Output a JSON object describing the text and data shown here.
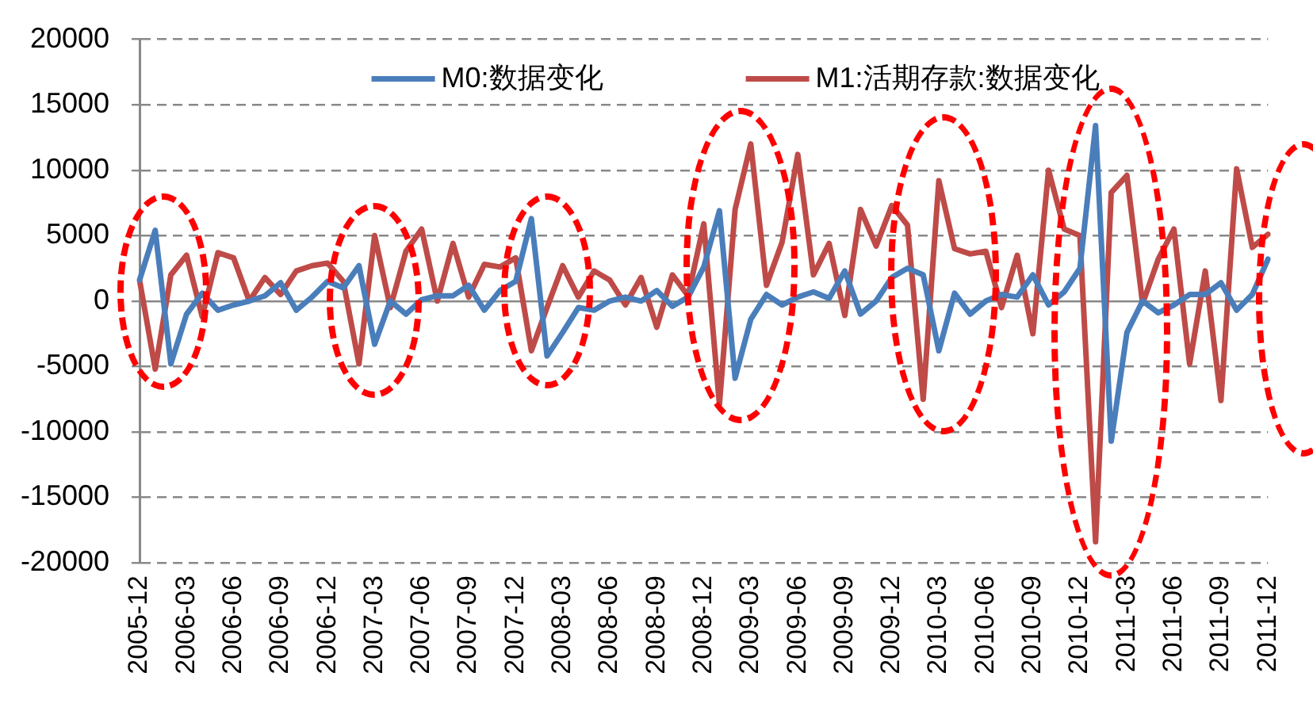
{
  "chart_data": {
    "type": "line",
    "categories": [
      "2005-12",
      null,
      null,
      "2006-03",
      null,
      null,
      "2006-06",
      null,
      null,
      "2006-09",
      null,
      null,
      "2006-12",
      null,
      null,
      "2007-03",
      null,
      null,
      "2007-06",
      null,
      null,
      "2007-09",
      null,
      null,
      "2007-12",
      null,
      null,
      "2008-03",
      null,
      null,
      "2008-06",
      null,
      null,
      "2008-09",
      null,
      null,
      "2008-12",
      null,
      null,
      "2009-03",
      null,
      null,
      "2009-06",
      null,
      null,
      "2009-09",
      null,
      null,
      "2009-12",
      null,
      null,
      "2010-03",
      null,
      null,
      "2010-06",
      null,
      null,
      "2010-09",
      null,
      null,
      "2010-12",
      null,
      null,
      "2011-03",
      null,
      null,
      "2011-06",
      null,
      null,
      "2011-09",
      null,
      null,
      "2011-12"
    ],
    "series": [
      {
        "name": "M0:数据变化",
        "color": "#4a7ebb",
        "values": [
          1600,
          5400,
          -4800,
          -1000,
          600,
          -700,
          -300,
          0,
          400,
          1400,
          -700,
          300,
          1500,
          1000,
          2700,
          -3300,
          0,
          -1000,
          100,
          400,
          400,
          1200,
          -700,
          800,
          1500,
          6300,
          -4200,
          -2400,
          -500,
          -700,
          0,
          300,
          0,
          800,
          -400,
          300,
          2600,
          6900,
          -5900,
          -1400,
          500,
          -300,
          300,
          700,
          200,
          2300,
          -1000,
          0,
          1800,
          2500,
          2000,
          -3800,
          600,
          -1000,
          0,
          500,
          300,
          2000,
          -300,
          700,
          2500,
          13400,
          -10700,
          -2400,
          0,
          -900,
          -300,
          500,
          500,
          1400,
          -700,
          500,
          3200
        ]
      },
      {
        "name": "M1:活期存款:数据变化",
        "color": "#be4b48",
        "values": [
          1600,
          -5200,
          2000,
          3500,
          -1200,
          3700,
          3300,
          0,
          1800,
          500,
          2300,
          2700,
          2900,
          1500,
          -4800,
          5000,
          -500,
          3800,
          5500,
          0,
          4400,
          300,
          2800,
          2600,
          3300,
          -3800,
          -500,
          2700,
          300,
          2300,
          1600,
          -300,
          1800,
          -2000,
          2000,
          400,
          5900,
          -7900,
          7000,
          12000,
          1200,
          4500,
          11200,
          2000,
          4400,
          -1100,
          7000,
          4200,
          7300,
          5800,
          -7500,
          9200,
          4000,
          3600,
          3800,
          -500,
          3500,
          -2500,
          10000,
          5500,
          5000,
          -18400,
          8300,
          9600,
          -200,
          3200,
          5500,
          -4800,
          2300,
          -7600,
          10100,
          4100,
          5100
        ]
      }
    ],
    "ylim": [
      -20000,
      20000
    ],
    "yticks": [
      -20000,
      -15000,
      -10000,
      -5000,
      0,
      5000,
      10000,
      15000,
      20000
    ],
    "grid": "y",
    "legend": "top",
    "marker": "none",
    "line_style": "solid"
  }
}
